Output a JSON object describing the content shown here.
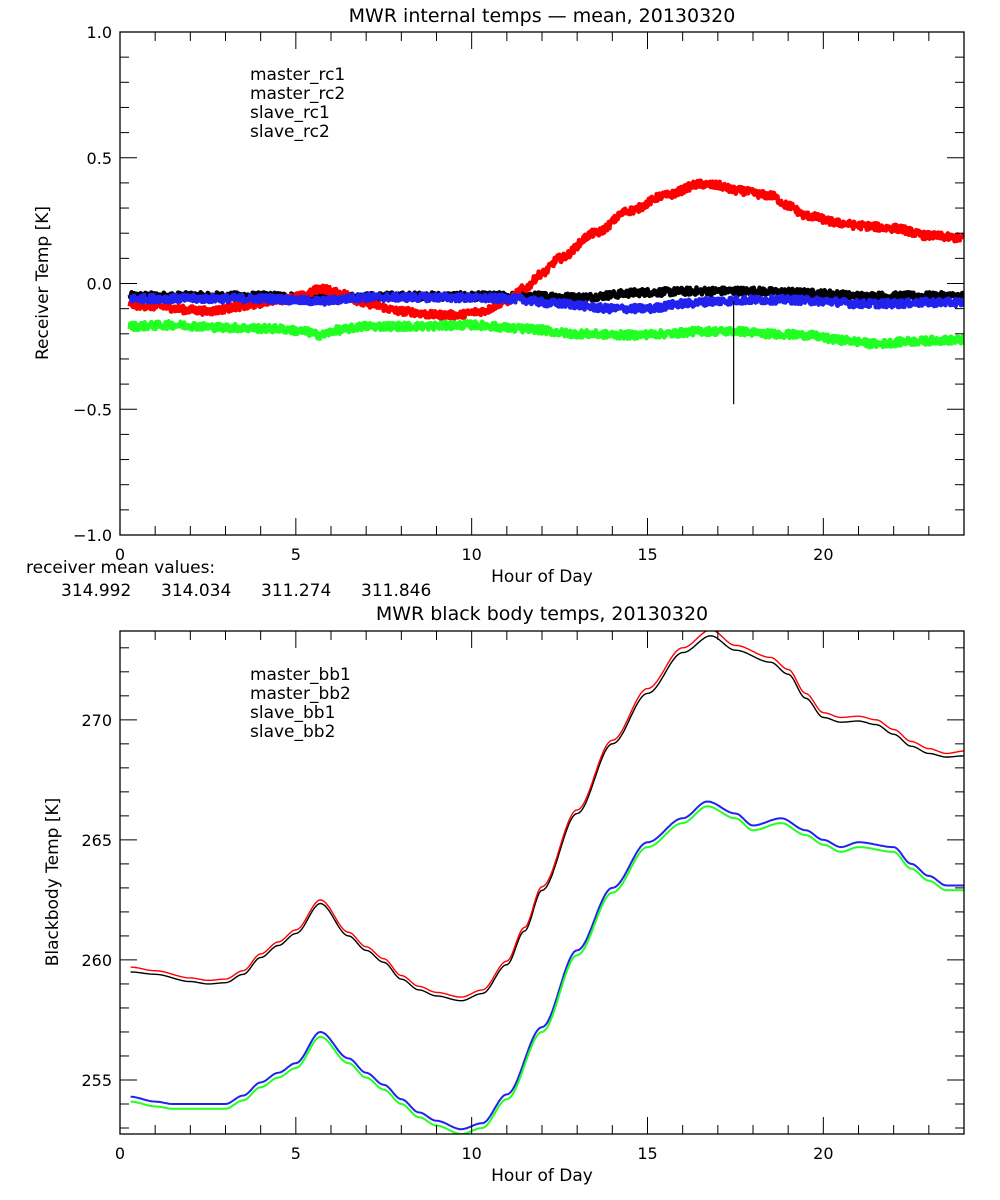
{
  "colors": {
    "black": "#000000",
    "red": "#ff0000",
    "blue": "#2222ee",
    "green": "#22ff22"
  },
  "chart_data": [
    {
      "type": "line",
      "title": "MWR internal temps — mean, 20130320",
      "xlabel": "Hour of Day",
      "ylabel": "Receiver Temp [K]",
      "xlim": [
        0,
        24
      ],
      "ylim": [
        -1.0,
        1.0
      ],
      "xticks": [
        0,
        5,
        10,
        15,
        20
      ],
      "xtick_labels": [
        "0",
        "5",
        "10",
        "15",
        "20"
      ],
      "x_minor_step": 1,
      "yticks": [
        -1.0,
        -0.5,
        0.0,
        0.5,
        1.0
      ],
      "ytick_labels": [
        "−1.0",
        "−0.5",
        "0.0",
        "0.5",
        "1.0"
      ],
      "y_minor_step": 0.1,
      "grid": false,
      "legend_position": "top-left",
      "noisy": true,
      "series": [
        {
          "name": "master_rc1",
          "color": "#000000",
          "x": [
            0.28,
            2,
            4,
            6,
            8,
            10,
            12,
            13,
            15,
            16.5,
            18,
            19,
            20,
            21,
            22,
            23,
            24
          ],
          "y": [
            -0.05,
            -0.05,
            -0.05,
            -0.055,
            -0.05,
            -0.05,
            -0.05,
            -0.055,
            -0.035,
            -0.03,
            -0.03,
            -0.035,
            -0.04,
            -0.05,
            -0.05,
            -0.05,
            -0.05
          ]
        },
        {
          "name": "master_rc2",
          "color": "#ff0000",
          "x": [
            0.28,
            1,
            2,
            2.5,
            3.5,
            4.5,
            5.2,
            5.7,
            6.3,
            7,
            8,
            9,
            9.6,
            10.3,
            11,
            11.5,
            12,
            12.5,
            13.5,
            14.5,
            15.5,
            16.5,
            17,
            17.5,
            18.5,
            19,
            19.5,
            20.5,
            21,
            22,
            23,
            24
          ],
          "y": [
            -0.085,
            -0.09,
            -0.105,
            -0.11,
            -0.09,
            -0.065,
            -0.05,
            -0.02,
            -0.04,
            -0.08,
            -0.11,
            -0.125,
            -0.125,
            -0.11,
            -0.07,
            -0.02,
            0.04,
            0.1,
            0.2,
            0.29,
            0.35,
            0.395,
            0.39,
            0.37,
            0.35,
            0.31,
            0.27,
            0.24,
            0.23,
            0.22,
            0.19,
            0.18
          ]
        },
        {
          "name": "slave_rc1",
          "color": "#2222ee",
          "x": [
            0.28,
            2,
            4,
            5.7,
            7,
            9,
            11,
            12.5,
            14,
            15,
            16,
            17,
            18,
            19,
            20,
            21,
            22,
            23,
            24
          ],
          "y": [
            -0.06,
            -0.06,
            -0.06,
            -0.07,
            -0.055,
            -0.055,
            -0.06,
            -0.08,
            -0.1,
            -0.1,
            -0.08,
            -0.07,
            -0.065,
            -0.065,
            -0.07,
            -0.08,
            -0.08,
            -0.075,
            -0.075
          ]
        },
        {
          "name": "slave_rc2",
          "color": "#22ff22",
          "x": [
            0.28,
            1.5,
            3,
            4.5,
            5.2,
            5.7,
            6.2,
            7,
            8.5,
            10,
            11.5,
            13,
            14.5,
            15.5,
            16.5,
            17.5,
            18.5,
            19.5,
            20.5,
            21.5,
            22.5,
            23.5,
            24
          ],
          "y": [
            -0.17,
            -0.165,
            -0.175,
            -0.18,
            -0.19,
            -0.205,
            -0.185,
            -0.17,
            -0.17,
            -0.165,
            -0.18,
            -0.2,
            -0.205,
            -0.2,
            -0.19,
            -0.19,
            -0.2,
            -0.205,
            -0.225,
            -0.24,
            -0.23,
            -0.225,
            -0.225
          ]
        }
      ],
      "annotations": [
        {
          "type": "spike",
          "x": 17.45,
          "y_from": -0.07,
          "y_to": -0.48,
          "color": "#000000"
        }
      ],
      "footer": {
        "label": "receiver mean values:",
        "values": [
          {
            "text": "314.992",
            "color": "#000000"
          },
          {
            "text": "314.034",
            "color": "#ff0000"
          },
          {
            "text": "311.274",
            "color": "#2222ee"
          },
          {
            "text": "311.846",
            "color": "#22ff22"
          }
        ]
      }
    },
    {
      "type": "line",
      "title": "MWR black body temps, 20130320",
      "xlabel": "Hour of Day",
      "ylabel": "Blackbody Temp [K]",
      "xlim": [
        0,
        24
      ],
      "ylim": [
        252.75,
        273.7
      ],
      "xticks": [
        0,
        5,
        10,
        15,
        20
      ],
      "xtick_labels": [
        "0",
        "5",
        "10",
        "15",
        "20"
      ],
      "x_minor_step": 1,
      "yticks": [
        255,
        260,
        265,
        270
      ],
      "ytick_labels": [
        "255",
        "260",
        "265",
        "270"
      ],
      "y_minor_step": 1,
      "grid": false,
      "legend_position": "top-left",
      "noisy": false,
      "series": [
        {
          "name": "master_bb1",
          "color": "#000000",
          "x": [
            0.3,
            1,
            2,
            2.5,
            3,
            3.5,
            4,
            4.5,
            5,
            5.7,
            6.5,
            7,
            7.5,
            8,
            8.5,
            9,
            9.7,
            10.3,
            11,
            11.5,
            12,
            13,
            14,
            15,
            16,
            16.8,
            17.5,
            18.5,
            19,
            19.5,
            20,
            20.5,
            21,
            21.5,
            22,
            22.5,
            23,
            23.5,
            24
          ],
          "y": [
            259.5,
            259.4,
            259.1,
            259.0,
            259.05,
            259.4,
            260.1,
            260.6,
            261.1,
            262.35,
            261.0,
            260.4,
            259.9,
            259.2,
            258.75,
            258.5,
            258.3,
            258.6,
            259.8,
            261.2,
            262.9,
            266.1,
            269.0,
            271.1,
            272.8,
            273.5,
            272.9,
            272.4,
            271.9,
            270.9,
            270.1,
            269.9,
            269.95,
            269.8,
            269.4,
            268.9,
            268.6,
            268.45,
            268.5
          ]
        },
        {
          "name": "master_bb2",
          "color": "#ff0000",
          "x": [
            0.3,
            1,
            2,
            2.5,
            3,
            3.5,
            4,
            4.5,
            5,
            5.7,
            6.5,
            7,
            7.5,
            8,
            8.5,
            9,
            9.7,
            10.3,
            11,
            11.5,
            12,
            13,
            14,
            15,
            16,
            16.8,
            17.5,
            18.5,
            19,
            19.5,
            20,
            20.5,
            21,
            21.5,
            22,
            22.5,
            23,
            23.5,
            24
          ],
          "y": [
            259.7,
            259.55,
            259.25,
            259.15,
            259.2,
            259.55,
            260.25,
            260.75,
            261.25,
            262.5,
            261.15,
            260.55,
            260.05,
            259.35,
            258.9,
            258.65,
            258.45,
            258.75,
            259.95,
            261.35,
            263.05,
            266.25,
            269.15,
            271.3,
            273.0,
            273.75,
            273.1,
            272.6,
            272.1,
            271.1,
            270.3,
            270.1,
            270.15,
            270.0,
            269.6,
            269.1,
            268.8,
            268.6,
            268.7
          ]
        },
        {
          "name": "slave_bb1",
          "color": "#2222ee",
          "x": [
            0.3,
            1,
            1.5,
            3,
            3.5,
            4,
            4.5,
            5,
            5.7,
            6.5,
            7,
            7.5,
            8,
            8.5,
            9,
            9.7,
            10.3,
            11,
            12,
            13,
            14,
            15,
            16,
            16.7,
            17.5,
            18,
            18.8,
            19.5,
            20,
            20.5,
            21,
            22,
            22.5,
            23,
            23.5,
            24
          ],
          "y": [
            254.3,
            254.1,
            254.0,
            254.0,
            254.35,
            254.9,
            255.3,
            255.7,
            257.0,
            255.9,
            255.3,
            254.8,
            254.2,
            253.65,
            253.3,
            252.95,
            253.2,
            254.4,
            257.2,
            260.4,
            263.0,
            264.9,
            265.9,
            266.6,
            266.1,
            265.6,
            265.9,
            265.4,
            265.0,
            264.7,
            264.9,
            264.7,
            264.0,
            263.5,
            263.1,
            263.1
          ]
        },
        {
          "name": "slave_bb2",
          "color": "#22ff22",
          "x": [
            0.3,
            1,
            1.5,
            3,
            3.5,
            4,
            4.5,
            5,
            5.7,
            6.5,
            7,
            7.5,
            8,
            8.5,
            9,
            9.7,
            10.3,
            11,
            12,
            13,
            14,
            15,
            16,
            16.7,
            17.5,
            18,
            18.8,
            19.5,
            20,
            20.5,
            21,
            22,
            22.5,
            23,
            23.5,
            24
          ],
          "y": [
            254.1,
            253.9,
            253.8,
            253.8,
            254.15,
            254.7,
            255.1,
            255.5,
            256.8,
            255.7,
            255.1,
            254.6,
            254.0,
            253.45,
            253.1,
            252.75,
            253.0,
            254.2,
            257.0,
            260.2,
            262.8,
            264.7,
            265.7,
            266.4,
            265.9,
            265.4,
            265.7,
            265.2,
            264.8,
            264.5,
            264.7,
            264.5,
            263.8,
            263.3,
            262.9,
            262.9
          ]
        }
      ]
    }
  ]
}
